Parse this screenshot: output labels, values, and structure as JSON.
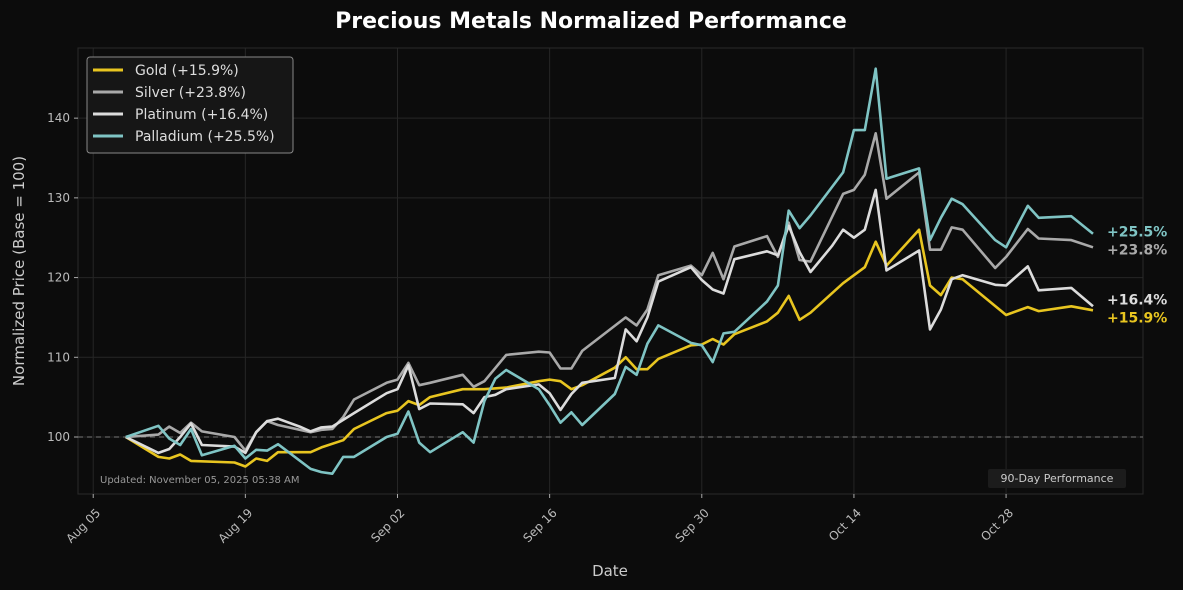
{
  "chart_data": {
    "type": "line",
    "title": "Precious Metals Normalized Performance",
    "xlabel": "Date",
    "ylabel": "Normalized Price (Base = 100)",
    "x_units": "days since 2025-08-05",
    "xlim": [
      -1.4,
      96.6
    ],
    "ylim": [
      92.85,
      148.8
    ],
    "grid": true,
    "baseline": 100,
    "legend_position": "top-left",
    "xticks": [
      {
        "value": 0,
        "label": "Aug 05"
      },
      {
        "value": 14,
        "label": "Aug 19"
      },
      {
        "value": 28,
        "label": "Sep 02"
      },
      {
        "value": 42,
        "label": "Sep 16"
      },
      {
        "value": 56,
        "label": "Sep 30"
      },
      {
        "value": 70,
        "label": "Oct 14"
      },
      {
        "value": 84,
        "label": "Oct 28"
      }
    ],
    "yticks": [
      100,
      110,
      120,
      130,
      140
    ],
    "annotations": {
      "updated": "Updated: November 05, 2025 05:38 AM",
      "period": "90-Day Performance"
    },
    "series": [
      {
        "name": "Gold (+15.9%)",
        "end_label": "+15.9%",
        "color": "#e8c520",
        "points": [
          [
            3,
            100
          ],
          [
            6,
            97.5
          ],
          [
            7,
            97.3
          ],
          [
            8,
            97.8
          ],
          [
            9,
            97
          ],
          [
            13,
            96.8
          ],
          [
            14,
            96.3
          ],
          [
            15,
            97.3
          ],
          [
            16,
            97
          ],
          [
            17,
            98.1
          ],
          [
            20,
            98.1
          ],
          [
            21,
            98.7
          ],
          [
            23,
            99.6
          ],
          [
            24,
            101
          ],
          [
            27,
            103
          ],
          [
            28,
            103.3
          ],
          [
            29,
            104.5
          ],
          [
            30,
            104
          ],
          [
            31,
            105
          ],
          [
            34,
            106
          ],
          [
            36,
            106
          ],
          [
            38,
            106.2
          ],
          [
            41,
            107
          ],
          [
            42,
            107.2
          ],
          [
            43,
            107
          ],
          [
            44,
            106
          ],
          [
            45,
            106.5
          ],
          [
            48,
            108.7
          ],
          [
            49,
            110
          ],
          [
            50,
            108.5
          ],
          [
            51,
            108.5
          ],
          [
            52,
            109.8
          ],
          [
            55,
            111.5
          ],
          [
            56,
            111.6
          ],
          [
            57,
            112.3
          ],
          [
            58,
            111.6
          ],
          [
            59,
            112.9
          ],
          [
            62,
            114.5
          ],
          [
            63,
            115.6
          ],
          [
            64,
            117.7
          ],
          [
            65,
            114.7
          ],
          [
            66,
            115.6
          ],
          [
            69,
            119.3
          ],
          [
            71,
            121.3
          ],
          [
            72,
            124.5
          ],
          [
            73,
            121.5
          ],
          [
            76,
            126
          ],
          [
            77,
            119
          ],
          [
            78,
            117.8
          ],
          [
            79,
            120
          ],
          [
            80,
            119.8
          ],
          [
            84,
            115.3
          ],
          [
            86,
            116.3
          ],
          [
            87,
            115.8
          ],
          [
            90,
            116.4
          ],
          [
            92,
            115.9
          ]
        ]
      },
      {
        "name": "Silver (+23.8%)",
        "end_label": "+23.8%",
        "color": "#a9a9a9",
        "points": [
          [
            3,
            100
          ],
          [
            6,
            100.3
          ],
          [
            7,
            101.3
          ],
          [
            8,
            100.5
          ],
          [
            9,
            101.8
          ],
          [
            10,
            100.7
          ],
          [
            13,
            100
          ],
          [
            14,
            98.3
          ],
          [
            15,
            100.6
          ],
          [
            16,
            102
          ],
          [
            17,
            101.5
          ],
          [
            20,
            100.6
          ],
          [
            21,
            100.9
          ],
          [
            22,
            101
          ],
          [
            23,
            102.5
          ],
          [
            24,
            104.7
          ],
          [
            27,
            106.8
          ],
          [
            28,
            107.2
          ],
          [
            29,
            109.3
          ],
          [
            30,
            106.5
          ],
          [
            31,
            106.8
          ],
          [
            34,
            107.8
          ],
          [
            35,
            106.3
          ],
          [
            36,
            107
          ],
          [
            38,
            110.3
          ],
          [
            41,
            110.7
          ],
          [
            42,
            110.6
          ],
          [
            43,
            108.6
          ],
          [
            44,
            108.6
          ],
          [
            45,
            110.8
          ],
          [
            49,
            115
          ],
          [
            50,
            114
          ],
          [
            51,
            116
          ],
          [
            52,
            120.3
          ],
          [
            55,
            121.5
          ],
          [
            56,
            120.3
          ],
          [
            57,
            123.1
          ],
          [
            58,
            119.8
          ],
          [
            59,
            123.9
          ],
          [
            62,
            125.2
          ],
          [
            63,
            122.6
          ],
          [
            64,
            126.9
          ],
          [
            65,
            122.2
          ],
          [
            66,
            122
          ],
          [
            69,
            130.5
          ],
          [
            70,
            131
          ],
          [
            71,
            132.9
          ],
          [
            72,
            138.1
          ],
          [
            73,
            129.9
          ],
          [
            76,
            133.2
          ],
          [
            77,
            123.5
          ],
          [
            78,
            123.5
          ],
          [
            79,
            126.3
          ],
          [
            80,
            126
          ],
          [
            83,
            121.2
          ],
          [
            84,
            122.6
          ],
          [
            86,
            126.1
          ],
          [
            87,
            124.9
          ],
          [
            90,
            124.7
          ],
          [
            92,
            123.8
          ]
        ]
      },
      {
        "name": "Platinum (+16.4%)",
        "end_label": "+16.4%",
        "color": "#dcdcdc",
        "points": [
          [
            3,
            100
          ],
          [
            6,
            98
          ],
          [
            7,
            98.5
          ],
          [
            8,
            100
          ],
          [
            9,
            101.7
          ],
          [
            10,
            99
          ],
          [
            13,
            98.8
          ],
          [
            14,
            98
          ],
          [
            15,
            100.6
          ],
          [
            16,
            102
          ],
          [
            17,
            102.3
          ],
          [
            19,
            101.3
          ],
          [
            20,
            100.7
          ],
          [
            21,
            101.2
          ],
          [
            22,
            101.3
          ],
          [
            24,
            103
          ],
          [
            27,
            105.5
          ],
          [
            28,
            106
          ],
          [
            29,
            109
          ],
          [
            30,
            103.5
          ],
          [
            31,
            104.2
          ],
          [
            34,
            104.1
          ],
          [
            35,
            103
          ],
          [
            36,
            105
          ],
          [
            37,
            105.3
          ],
          [
            38,
            106
          ],
          [
            41,
            106.6
          ],
          [
            42,
            105.5
          ],
          [
            43,
            103.4
          ],
          [
            44,
            105.4
          ],
          [
            45,
            106.8
          ],
          [
            48,
            107.4
          ],
          [
            49,
            113.5
          ],
          [
            50,
            112
          ],
          [
            51,
            115
          ],
          [
            52,
            119.5
          ],
          [
            55,
            121.3
          ],
          [
            56,
            119.7
          ],
          [
            57,
            118.5
          ],
          [
            58,
            118
          ],
          [
            59,
            122.3
          ],
          [
            62,
            123.3
          ],
          [
            63,
            122.8
          ],
          [
            64,
            126.5
          ],
          [
            65,
            123.2
          ],
          [
            66,
            120.7
          ],
          [
            68,
            124
          ],
          [
            69,
            126
          ],
          [
            70,
            125
          ],
          [
            71,
            126
          ],
          [
            72,
            131
          ],
          [
            73,
            120.9
          ],
          [
            76,
            123.4
          ],
          [
            77,
            113.5
          ],
          [
            78,
            116
          ],
          [
            79,
            119.8
          ],
          [
            80,
            120.3
          ],
          [
            83,
            119.1
          ],
          [
            84,
            119
          ],
          [
            86,
            121.4
          ],
          [
            87,
            118.4
          ],
          [
            90,
            118.7
          ],
          [
            92,
            116.4
          ]
        ]
      },
      {
        "name": "Palladium (+25.5%)",
        "end_label": "+25.5%",
        "color": "#7fc4c4",
        "points": [
          [
            3,
            100
          ],
          [
            6,
            101.4
          ],
          [
            7,
            99.8
          ],
          [
            8,
            99
          ],
          [
            9,
            101
          ],
          [
            10,
            97.7
          ],
          [
            13,
            98.9
          ],
          [
            14,
            97.3
          ],
          [
            15,
            98.4
          ],
          [
            16,
            98.3
          ],
          [
            17,
            99.1
          ],
          [
            20,
            96
          ],
          [
            21,
            95.6
          ],
          [
            22,
            95.4
          ],
          [
            23,
            97.5
          ],
          [
            24,
            97.5
          ],
          [
            27,
            100
          ],
          [
            28,
            100.4
          ],
          [
            29,
            103.2
          ],
          [
            30,
            99.3
          ],
          [
            31,
            98.1
          ],
          [
            34,
            100.6
          ],
          [
            35,
            99.3
          ],
          [
            36,
            104.5
          ],
          [
            37,
            107.3
          ],
          [
            38,
            108.4
          ],
          [
            41,
            106
          ],
          [
            42,
            104
          ],
          [
            43,
            101.8
          ],
          [
            44,
            103.1
          ],
          [
            45,
            101.5
          ],
          [
            48,
            105.4
          ],
          [
            49,
            108.8
          ],
          [
            50,
            107.8
          ],
          [
            51,
            111.7
          ],
          [
            52,
            114
          ],
          [
            55,
            111.8
          ],
          [
            56,
            111.5
          ],
          [
            57,
            109.4
          ],
          [
            58,
            113
          ],
          [
            59,
            113.2
          ],
          [
            62,
            117
          ],
          [
            63,
            119
          ],
          [
            64,
            128.4
          ],
          [
            65,
            126.2
          ],
          [
            66,
            127.8
          ],
          [
            69,
            133.2
          ],
          [
            70,
            138.5
          ],
          [
            71,
            138.5
          ],
          [
            72,
            146.2
          ],
          [
            73,
            132.4
          ],
          [
            76,
            133.7
          ],
          [
            77,
            124.7
          ],
          [
            78,
            127.5
          ],
          [
            79,
            129.9
          ],
          [
            80,
            129.2
          ],
          [
            83,
            124.7
          ],
          [
            84,
            123.8
          ],
          [
            86,
            129
          ],
          [
            87,
            127.5
          ],
          [
            90,
            127.7
          ],
          [
            92,
            125.5
          ]
        ]
      }
    ]
  }
}
